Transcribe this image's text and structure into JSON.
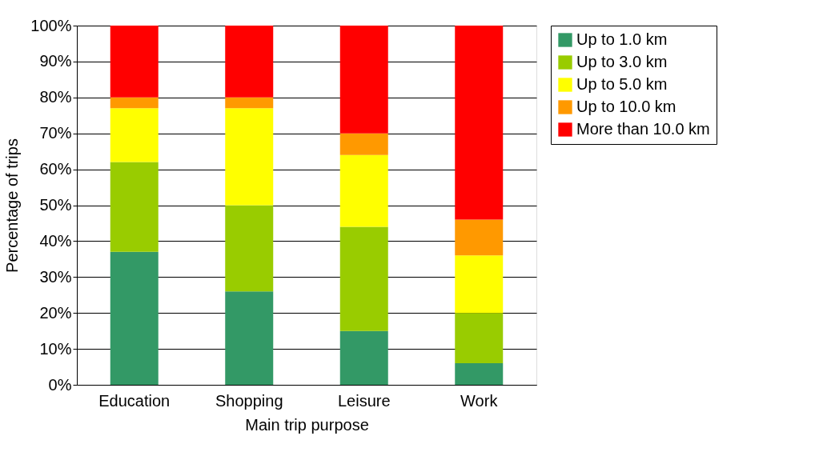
{
  "chart_data": {
    "type": "bar",
    "stacked": true,
    "xlabel": "Main trip purpose",
    "ylabel": "Percentage of trips",
    "categories": [
      "Education",
      "Shopping",
      "Leisure",
      "Work"
    ],
    "series": [
      {
        "name": "Up to 1.0 km",
        "color": "#339966",
        "values": [
          37,
          26,
          15,
          6
        ]
      },
      {
        "name": "Up to 3.0 km",
        "color": "#99cc00",
        "values": [
          25,
          24,
          29,
          14
        ]
      },
      {
        "name": "Up to 5.0 km",
        "color": "#ffff00",
        "values": [
          15,
          27,
          20,
          16
        ]
      },
      {
        "name": "Up to 10.0 km",
        "color": "#ff9900",
        "values": [
          3,
          3,
          6,
          10
        ]
      },
      {
        "name": "More than 10.0 km",
        "color": "#ff0000",
        "values": [
          20,
          20,
          30,
          54
        ]
      }
    ],
    "ylim": [
      0,
      100
    ],
    "yticks": [
      {
        "value": 0,
        "label": "0%"
      },
      {
        "value": 10,
        "label": "10%"
      },
      {
        "value": 20,
        "label": "20%"
      },
      {
        "value": 30,
        "label": "30%"
      },
      {
        "value": 40,
        "label": "40%"
      },
      {
        "value": 50,
        "label": "50%"
      },
      {
        "value": 60,
        "label": "60%"
      },
      {
        "value": 70,
        "label": "70%"
      },
      {
        "value": 80,
        "label": "80%"
      },
      {
        "value": 90,
        "label": "90%"
      },
      {
        "value": 100,
        "label": "100%"
      }
    ],
    "grid": "y",
    "legend": "right"
  }
}
